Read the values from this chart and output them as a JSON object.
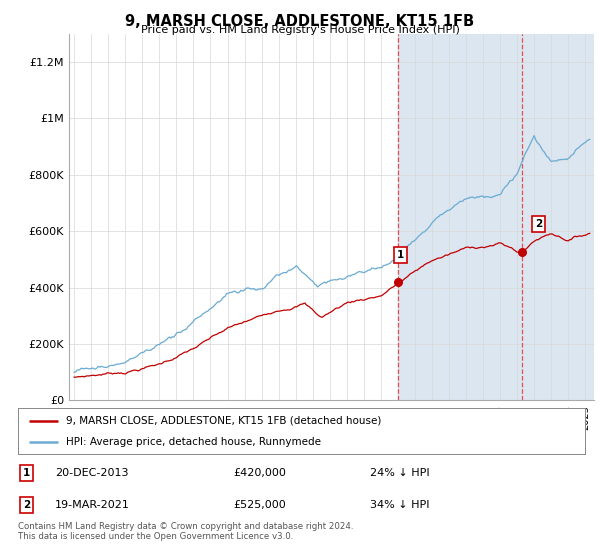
{
  "title": "9, MARSH CLOSE, ADDLESTONE, KT15 1FB",
  "subtitle": "Price paid vs. HM Land Registry's House Price Index (HPI)",
  "ylabel_ticks": [
    "£0",
    "£200K",
    "£400K",
    "£600K",
    "£800K",
    "£1M",
    "£1.2M"
  ],
  "ytick_values": [
    0,
    200000,
    400000,
    600000,
    800000,
    1000000,
    1200000
  ],
  "ylim": [
    0,
    1300000
  ],
  "xlim_start": 1994.7,
  "xlim_end": 2025.5,
  "hpi_color": "#6aabd2",
  "price_color": "#c00000",
  "shaded_color": "#dce6f1",
  "dashed_color": "#e05050",
  "marker1_year": 2014.0,
  "marker1_price": 420000,
  "marker2_year": 2021.25,
  "marker2_price": 525000,
  "legend_label1": "9, MARSH CLOSE, ADDLESTONE, KT15 1FB (detached house)",
  "legend_label2": "HPI: Average price, detached house, Runnymede",
  "footer": "Contains HM Land Registry data © Crown copyright and database right 2024.\nThis data is licensed under the Open Government Licence v3.0.",
  "background_color": "#ffffff",
  "grid_color": "#d8d8d8"
}
